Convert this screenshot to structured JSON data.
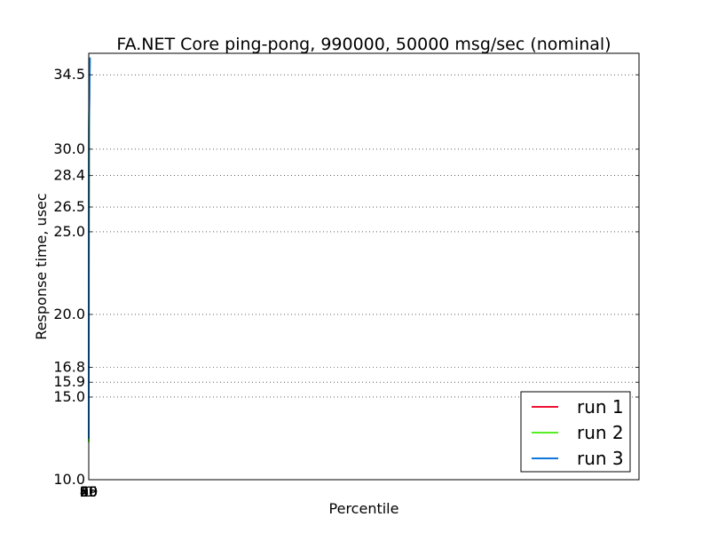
{
  "chart_data": {
    "type": "line",
    "title": "FA.NET Core ping-pong, 990000, 50000 msg/sec (nominal)",
    "xlabel": "Percentile",
    "ylabel": "Response time, usec",
    "x_scale": "reciprocal",
    "x_max_percentile": 99.9999,
    "xlim": [
      0,
      99.9999
    ],
    "ylim": [
      10.0,
      35.8
    ],
    "x_ticks": [
      {
        "value": 0,
        "label": "0"
      },
      {
        "value": 20,
        "label": "20"
      },
      {
        "value": 40,
        "label": "40"
      },
      {
        "value": 50,
        "label": "50"
      },
      {
        "value": 60,
        "label": "60"
      },
      {
        "value": 80,
        "label": "80"
      },
      {
        "value": 90,
        "label": "90"
      },
      {
        "value": 95,
        "label": "95"
      },
      {
        "value": 99,
        "label": "99"
      }
    ],
    "y_ticks": [
      {
        "value": 10.0,
        "label": "10.0"
      },
      {
        "value": 15.0,
        "label": "15.0"
      },
      {
        "value": 15.9,
        "label": "15.9"
      },
      {
        "value": 16.8,
        "label": "16.8"
      },
      {
        "value": 20.0,
        "label": "20.0"
      },
      {
        "value": 25.0,
        "label": "25.0"
      },
      {
        "value": 26.5,
        "label": "26.5"
      },
      {
        "value": 28.4,
        "label": "28.4"
      },
      {
        "value": 30.0,
        "label": "30.0"
      },
      {
        "value": 34.5,
        "label": "34.5"
      }
    ],
    "grid": true,
    "legend_position": "lower right",
    "series": [
      {
        "name": "run 1",
        "color": "#ee1133",
        "x": [
          0,
          10,
          30,
          50,
          60,
          70,
          80,
          85,
          88,
          90,
          92,
          94,
          95,
          96,
          97,
          97.5,
          98,
          98.3,
          98.5,
          98.7,
          99,
          99.2,
          99.4,
          99.6,
          99.8,
          99.95
        ],
        "y": [
          12.6,
          15.6,
          15.8,
          16.0,
          16.2,
          16.4,
          16.5,
          16.6,
          16.65,
          16.7,
          16.75,
          16.85,
          16.95,
          17.1,
          17.3,
          17.6,
          18.5,
          20.0,
          21.5,
          23.0,
          24.0,
          24.3,
          25.5,
          27.5,
          31.0,
          35.5
        ]
      },
      {
        "name": "run 2",
        "color": "#55ee22",
        "x": [
          0,
          10,
          30,
          50,
          60,
          70,
          80,
          85,
          88,
          90,
          92,
          94,
          95,
          96,
          97,
          97.5,
          98,
          98.3,
          98.5,
          98.7,
          99,
          99.2,
          99.4,
          99.6,
          99.8,
          99.95
        ],
        "y": [
          12.3,
          15.4,
          15.6,
          15.8,
          15.95,
          16.05,
          16.2,
          16.3,
          16.35,
          16.4,
          16.45,
          16.55,
          16.6,
          16.75,
          16.9,
          17.3,
          18.4,
          19.8,
          21.3,
          22.8,
          23.8,
          24.2,
          25.5,
          28.0,
          32.0,
          35.5
        ]
      },
      {
        "name": "run 3",
        "color": "#1177dd",
        "x": [
          0,
          10,
          30,
          50,
          60,
          70,
          80,
          85,
          88,
          90,
          92,
          94,
          95,
          96,
          97,
          97.5,
          98,
          98.3,
          98.5,
          98.7,
          99,
          99.2,
          99.4,
          99.6,
          99.8,
          99.95
        ],
        "y": [
          12.5,
          15.6,
          15.8,
          16.0,
          16.15,
          16.3,
          16.4,
          16.5,
          16.55,
          16.6,
          16.65,
          16.75,
          16.85,
          17.0,
          17.2,
          17.5,
          18.6,
          20.2,
          21.8,
          23.3,
          24.1,
          24.4,
          25.6,
          27.8,
          31.5,
          35.5
        ]
      }
    ]
  }
}
